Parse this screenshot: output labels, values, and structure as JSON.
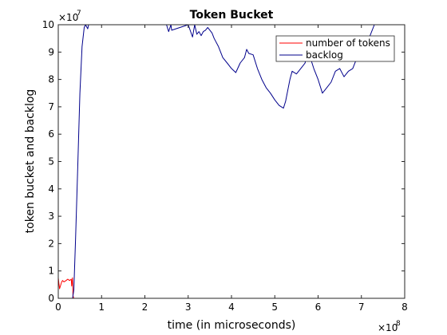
{
  "chart_data": {
    "type": "line",
    "title": "Token Bucket",
    "xlabel": "time (in microseconds)",
    "ylabel": "token bucket and backlog",
    "x_multiplier_label": "×10",
    "x_multiplier_exp": "8",
    "y_multiplier_label": "×10",
    "y_multiplier_exp": "7",
    "xlim": [
      0,
      8
    ],
    "ylim": [
      0,
      10
    ],
    "x_ticks": [
      "0",
      "1",
      "2",
      "3",
      "4",
      "5",
      "6",
      "7",
      "8"
    ],
    "y_ticks": [
      "0",
      "1",
      "2",
      "3",
      "4",
      "5",
      "6",
      "7",
      "8",
      "9",
      "10"
    ],
    "legend_position": "top-right",
    "grid": false,
    "series": [
      {
        "name": "number of tokens",
        "color": "#ff0000",
        "x": [
          0,
          0.03,
          0.08,
          0.1,
          0.13,
          0.18,
          0.22,
          0.26,
          0.3,
          0.31,
          0.33,
          0.34,
          0.36,
          0.5,
          1,
          2,
          3,
          4,
          5,
          6,
          7,
          7.4
        ],
        "y": [
          0.75,
          0.35,
          0.6,
          0.65,
          0.6,
          0.65,
          0.7,
          0.65,
          0.7,
          0.45,
          0.75,
          0.1,
          0,
          0,
          0,
          0,
          0,
          0,
          0,
          0,
          0,
          0
        ]
      },
      {
        "name": "backlog",
        "color": "#00008b",
        "x": [
          0,
          0.33,
          0.36,
          0.4,
          0.45,
          0.5,
          0.55,
          0.6,
          0.63,
          0.68,
          0.7,
          1,
          1.5,
          2,
          2.5,
          2.55,
          2.6,
          2.62,
          3,
          3.1,
          3.15,
          3.2,
          3.25,
          3.3,
          3.35,
          3.4,
          3.45,
          3.55,
          3.6,
          3.7,
          3.8,
          3.9,
          4.0,
          4.1,
          4.2,
          4.3,
          4.35,
          4.4,
          4.5,
          4.6,
          4.7,
          4.8,
          4.9,
          5.0,
          5.1,
          5.2,
          5.25,
          5.3,
          5.35,
          5.4,
          5.5,
          5.6,
          5.7,
          5.75,
          5.8,
          5.9,
          6.0,
          6.1,
          6.2,
          6.3,
          6.4,
          6.5,
          6.6,
          6.7,
          6.8,
          6.9,
          7.0,
          7.1,
          7.2,
          7.3,
          7.33
        ],
        "y": [
          0,
          0,
          0.3,
          2.2,
          4.8,
          7.5,
          9.2,
          9.9,
          10,
          9.85,
          10,
          10,
          10,
          10,
          10,
          9.75,
          10,
          9.8,
          10,
          9.55,
          10,
          9.65,
          9.75,
          9.6,
          9.75,
          9.8,
          9.9,
          9.7,
          9.5,
          9.2,
          8.8,
          8.6,
          8.4,
          8.25,
          8.6,
          8.8,
          9.1,
          8.95,
          8.9,
          8.4,
          8.0,
          7.7,
          7.5,
          7.25,
          7.05,
          6.95,
          7.2,
          7.6,
          8.0,
          8.3,
          8.2,
          8.4,
          8.6,
          9.0,
          8.9,
          8.4,
          8.0,
          7.5,
          7.7,
          7.9,
          8.3,
          8.4,
          8.1,
          8.3,
          8.4,
          8.8,
          9.0,
          9.2,
          9.6,
          10,
          10
        ]
      }
    ]
  }
}
